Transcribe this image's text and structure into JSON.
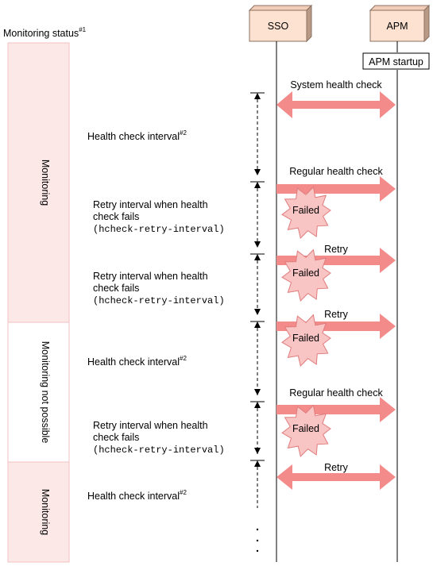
{
  "header": {
    "monitoring_status_label": "Monitoring status",
    "monitoring_status_note": "#1"
  },
  "participants": {
    "sso": "SSO",
    "apm": "APM"
  },
  "apm_startup": "APM startup",
  "status_bands": [
    {
      "label": "Monitoring",
      "state": "monitoring"
    },
    {
      "label": "Monitoring not possible",
      "state": "not-possible"
    },
    {
      "label": "Monitoring",
      "state": "monitoring"
    }
  ],
  "messages": [
    {
      "label": "System health check",
      "direction": "both"
    },
    {
      "label": "Regular health check",
      "direction": "right",
      "failed": true
    },
    {
      "label": "Retry",
      "direction": "right",
      "failed": true
    },
    {
      "label": "Retry",
      "direction": "right",
      "failed": true
    },
    {
      "label": "Regular health check",
      "direction": "right",
      "failed": true
    },
    {
      "label": "Retry",
      "direction": "both"
    }
  ],
  "failed_label": "Failed",
  "intervals": {
    "health_check": "Health check interval",
    "health_check_note": "#2",
    "retry_line1": "Retry interval when health",
    "retry_line2": "check fails",
    "retry_param": "hcheck-retry-interval"
  },
  "colors": {
    "band_fill": "#fde8e8",
    "band_border": "#f3c0c0",
    "arrow": "#f38b8b",
    "burst_fill": "#f9c4c4",
    "burst_stroke": "#e07c7c",
    "box_fill": "#fde2d2",
    "box_dark": "#b99a86"
  }
}
